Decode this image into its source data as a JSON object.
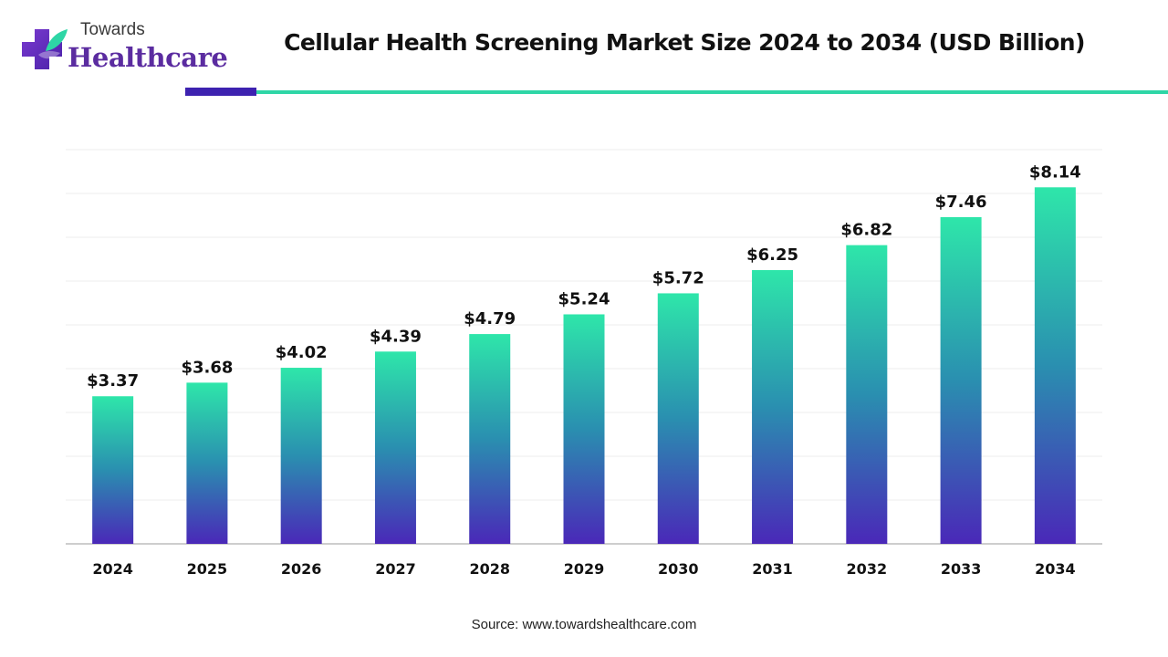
{
  "brand": {
    "line1": "Towards",
    "line2": "Healthcare",
    "colors": {
      "purple": "#5b2ca0",
      "teal": "#2ed6a6",
      "indigo": "#3d22b0"
    }
  },
  "source_text": "Source: www.towardshealthcare.com",
  "chart_data": {
    "type": "bar",
    "title": "Cellular Health Screening Market Size 2024 to 2034 (USD Billion)",
    "xlabel": "",
    "ylabel": "",
    "categories": [
      "2024",
      "2025",
      "2026",
      "2027",
      "2028",
      "2029",
      "2030",
      "2031",
      "2032",
      "2033",
      "2034"
    ],
    "values": [
      3.37,
      3.68,
      4.02,
      4.39,
      4.79,
      5.24,
      5.72,
      6.25,
      6.82,
      7.46,
      8.14
    ],
    "value_labels": [
      "$3.37",
      "$3.68",
      "$4.02",
      "$4.39",
      "$4.79",
      "$5.24",
      "$5.72",
      "$6.25",
      "$6.82",
      "$7.46",
      "$8.14"
    ],
    "ylim": [
      0,
      9
    ],
    "grid": true,
    "legend": "none",
    "bar_gradient": {
      "top": "#2ee6aa",
      "mid": "#2a8fb0",
      "bottom": "#4a28b8"
    }
  }
}
